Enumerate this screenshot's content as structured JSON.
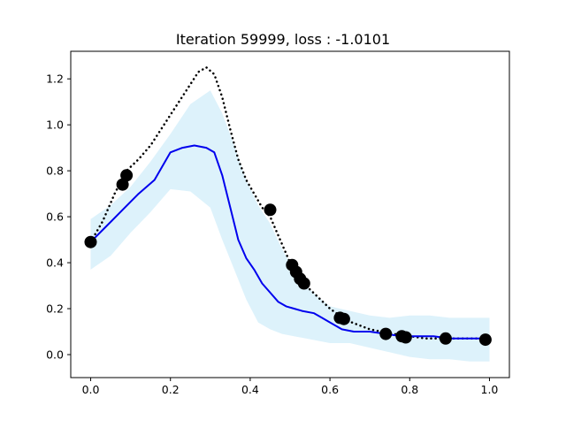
{
  "chart_data": {
    "type": "line",
    "title": "Iteration 59999, loss : -1.0101",
    "xlabel": "",
    "ylabel": "",
    "xlim": [
      -0.05,
      1.05
    ],
    "ylim": [
      -0.1,
      1.32
    ],
    "grid": false,
    "x_ticks": [
      0.0,
      0.2,
      0.4,
      0.6,
      0.8,
      1.0
    ],
    "x_tick_labels": [
      "0.0",
      "0.2",
      "0.4",
      "0.6",
      "0.8",
      "1.0"
    ],
    "y_ticks": [
      0.0,
      0.2,
      0.4,
      0.6,
      0.8,
      1.0,
      1.2
    ],
    "y_tick_labels": [
      "0.0",
      "0.2",
      "0.4",
      "0.6",
      "0.8",
      "1.0",
      "1.2"
    ],
    "series": [
      {
        "kind": "line",
        "style": "dotted",
        "color": "#000000",
        "x": [
          0.0,
          0.03,
          0.06,
          0.09,
          0.12,
          0.15,
          0.18,
          0.21,
          0.24,
          0.27,
          0.29,
          0.31,
          0.33,
          0.35,
          0.37,
          0.39,
          0.41,
          0.43,
          0.45,
          0.47,
          0.5,
          0.52,
          0.54,
          0.57,
          0.6,
          0.64,
          0.7,
          0.76,
          0.8,
          0.84,
          0.88,
          0.92,
          0.96,
          1.0
        ],
        "y": [
          0.49,
          0.58,
          0.7,
          0.8,
          0.85,
          0.91,
          0.99,
          1.07,
          1.15,
          1.23,
          1.25,
          1.22,
          1.12,
          0.98,
          0.85,
          0.76,
          0.7,
          0.64,
          0.6,
          0.52,
          0.4,
          0.35,
          0.3,
          0.25,
          0.2,
          0.15,
          0.11,
          0.09,
          0.08,
          0.07,
          0.07,
          0.07,
          0.07,
          0.07
        ]
      },
      {
        "kind": "line",
        "style": "solid",
        "color": "#0000ee",
        "x": [
          0.0,
          0.04,
          0.08,
          0.12,
          0.16,
          0.2,
          0.23,
          0.26,
          0.29,
          0.31,
          0.33,
          0.35,
          0.37,
          0.39,
          0.41,
          0.43,
          0.45,
          0.47,
          0.49,
          0.51,
          0.53,
          0.56,
          0.58,
          0.6,
          0.63,
          0.66,
          0.7,
          0.74,
          0.78,
          0.82,
          0.86,
          0.9,
          0.94,
          1.0
        ],
        "y": [
          0.49,
          0.56,
          0.63,
          0.7,
          0.76,
          0.88,
          0.9,
          0.91,
          0.9,
          0.88,
          0.78,
          0.64,
          0.5,
          0.42,
          0.37,
          0.31,
          0.27,
          0.23,
          0.21,
          0.2,
          0.19,
          0.18,
          0.16,
          0.14,
          0.11,
          0.1,
          0.1,
          0.09,
          0.08,
          0.08,
          0.08,
          0.07,
          0.07,
          0.07
        ]
      }
    ],
    "band": {
      "color": "#ddf2fb",
      "x": [
        0.0,
        0.05,
        0.1,
        0.15,
        0.2,
        0.25,
        0.3,
        0.33,
        0.36,
        0.39,
        0.42,
        0.45,
        0.48,
        0.51,
        0.54,
        0.57,
        0.6,
        0.65,
        0.7,
        0.75,
        0.8,
        0.85,
        0.9,
        0.95,
        1.0
      ],
      "upper": [
        0.59,
        0.65,
        0.73,
        0.84,
        0.96,
        1.09,
        1.15,
        1.05,
        0.91,
        0.76,
        0.65,
        0.57,
        0.46,
        0.37,
        0.3,
        0.25,
        0.21,
        0.19,
        0.17,
        0.16,
        0.17,
        0.17,
        0.16,
        0.16,
        0.16
      ],
      "lower": [
        0.37,
        0.43,
        0.53,
        0.62,
        0.72,
        0.71,
        0.64,
        0.5,
        0.37,
        0.24,
        0.14,
        0.11,
        0.09,
        0.08,
        0.07,
        0.06,
        0.05,
        0.05,
        0.03,
        0.01,
        -0.01,
        -0.02,
        -0.02,
        -0.03,
        -0.03
      ]
    },
    "scatter": {
      "color": "#000000",
      "x": [
        0.0,
        0.08,
        0.09,
        0.45,
        0.505,
        0.515,
        0.525,
        0.535,
        0.625,
        0.635,
        0.74,
        0.78,
        0.79,
        0.89,
        0.99
      ],
      "y": [
        0.49,
        0.74,
        0.78,
        0.63,
        0.39,
        0.36,
        0.33,
        0.31,
        0.16,
        0.155,
        0.09,
        0.08,
        0.075,
        0.07,
        0.065
      ]
    }
  }
}
